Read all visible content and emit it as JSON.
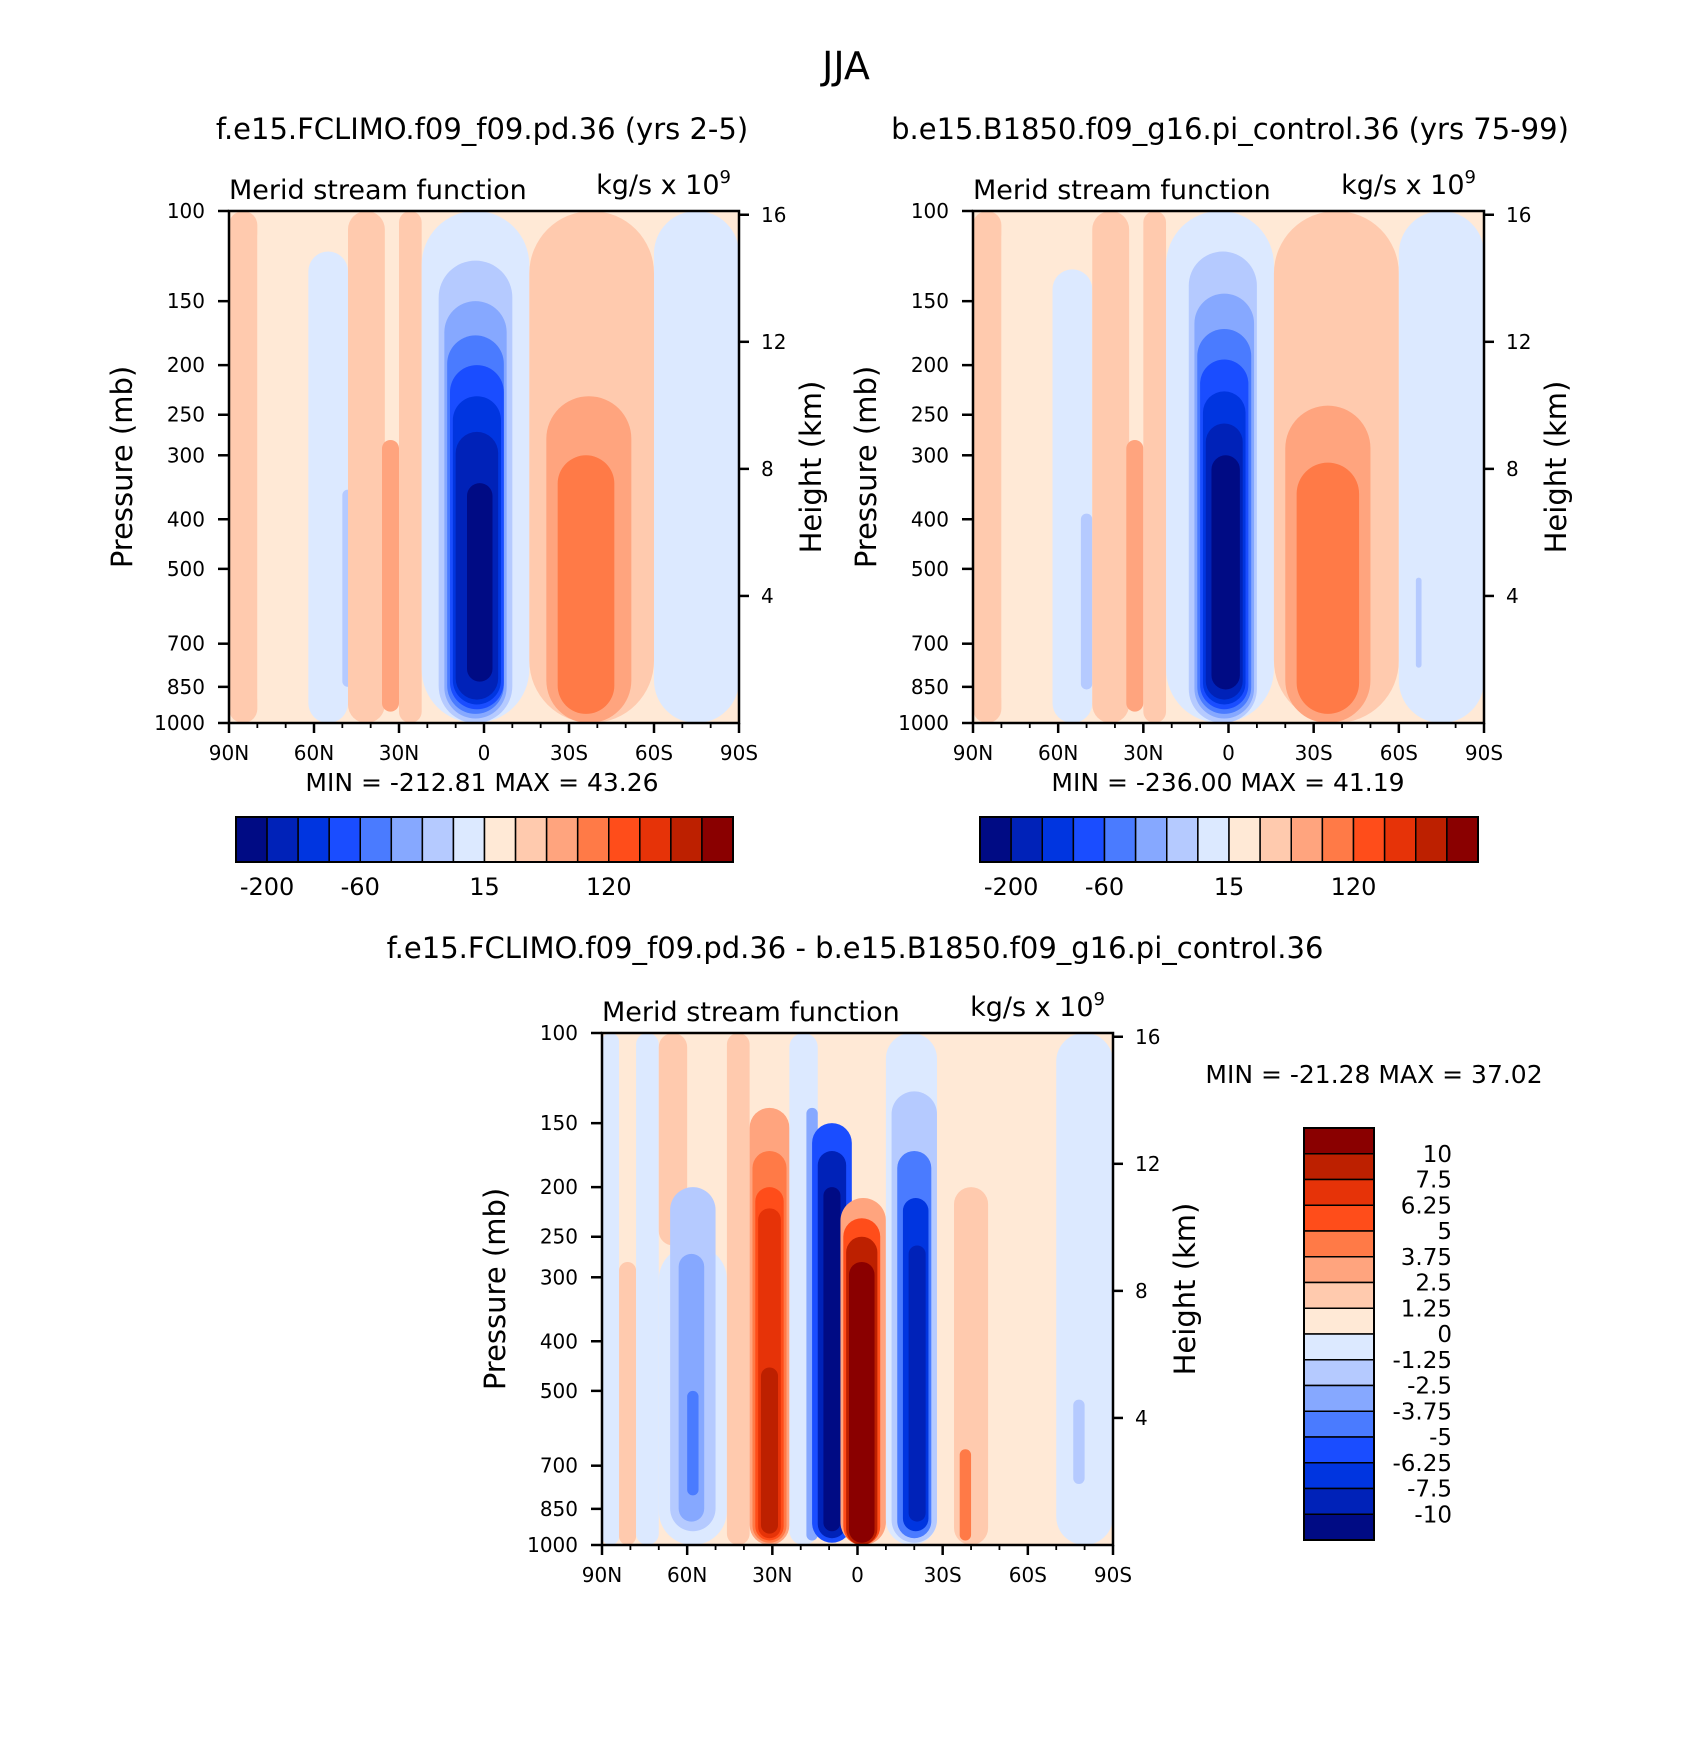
{
  "page_title": "JJA",
  "colors": {
    "negative": [
      "#000b84",
      "#0022b8",
      "#0035e0",
      "#1a4dff",
      "#4a7bff",
      "#86a8ff",
      "#b5caff",
      "#dce9ff"
    ],
    "positive": [
      "#ffe9d6",
      "#ffcaae",
      "#ffa47e",
      "#ff7a47",
      "#ff4d1a",
      "#e63308",
      "#bd2000",
      "#8a0000"
    ]
  },
  "chart_data": [
    {
      "id": "top-left",
      "type": "heatmap",
      "title": "f.e15.FCLIMO.f09_f09.pd.36 (yrs 2-5)",
      "left_string": "Merid stream function",
      "right_string": "kg/s x 10",
      "right_string_exp": "9",
      "ylabel": "Pressure (mb)",
      "ylabel_right": "Height (km)",
      "x_ticks": [
        "90N",
        "60N",
        "30N",
        "0",
        "30S",
        "60S",
        "90S"
      ],
      "y_ticks": [
        "100",
        "150",
        "200",
        "250",
        "300",
        "400",
        "500",
        "700",
        "850",
        "1000"
      ],
      "y_ticks_right": [
        "16",
        "12",
        "8",
        "4"
      ],
      "ylim": [
        1000,
        100
      ],
      "min_label": "MIN =",
      "min_value": "-212.81",
      "max_label": "MAX =",
      "max_value": "43.26",
      "colorbar_labels": [
        "-200",
        "-60",
        "15",
        "120"
      ],
      "cells": [
        {
          "lat_from": 90,
          "lat_to": 80,
          "p_top": 100,
          "p_bot": 1000,
          "level": 1
        },
        {
          "lat_from": 80,
          "lat_to": 62,
          "p_top": 100,
          "p_bot": 1000,
          "level": 0
        },
        {
          "lat_from": 62,
          "lat_to": 48,
          "p_top": 120,
          "p_bot": 1000,
          "level": -1
        },
        {
          "lat_from": 50,
          "lat_to": 46,
          "p_top": 350,
          "p_bot": 850,
          "level": -2
        },
        {
          "lat_from": 48,
          "lat_to": 35,
          "p_top": 100,
          "p_bot": 1000,
          "level": 1
        },
        {
          "lat_from": 36,
          "lat_to": 30,
          "p_top": 280,
          "p_bot": 950,
          "level": 2
        },
        {
          "lat_from": 30,
          "lat_to": 22,
          "p_top": 100,
          "p_bot": 1000,
          "level": 1
        },
        {
          "lat_from": 22,
          "lat_to": -16,
          "p_top": 100,
          "p_bot": 1000,
          "level": -1
        },
        {
          "lat_from": 16,
          "lat_to": -10,
          "p_top": 125,
          "p_bot": 1000,
          "level": -2
        },
        {
          "lat_from": 14,
          "lat_to": -8,
          "p_top": 150,
          "p_bot": 980,
          "level": -3
        },
        {
          "lat_from": 13,
          "lat_to": -7,
          "p_top": 175,
          "p_bot": 960,
          "level": -4
        },
        {
          "lat_from": 12,
          "lat_to": -7,
          "p_top": 200,
          "p_bot": 940,
          "level": -5
        },
        {
          "lat_from": 11,
          "lat_to": -6,
          "p_top": 230,
          "p_bot": 920,
          "level": -6
        },
        {
          "lat_from": 10,
          "lat_to": -5,
          "p_top": 270,
          "p_bot": 900,
          "level": -7
        },
        {
          "lat_from": 6,
          "lat_to": -3,
          "p_top": 340,
          "p_bot": 830,
          "level": -8
        },
        {
          "lat_from": -16,
          "lat_to": -60,
          "p_top": 100,
          "p_bot": 1000,
          "level": 1
        },
        {
          "lat_from": -22,
          "lat_to": -52,
          "p_top": 230,
          "p_bot": 1000,
          "level": 2
        },
        {
          "lat_from": -26,
          "lat_to": -46,
          "p_top": 300,
          "p_bot": 960,
          "level": 3
        },
        {
          "lat_from": -60,
          "lat_to": -90,
          "p_top": 100,
          "p_bot": 1000,
          "level": -1
        }
      ]
    },
    {
      "id": "top-right",
      "type": "heatmap",
      "title": "b.e15.B1850.f09_g16.pi_control.36 (yrs 75-99)",
      "left_string": "Merid stream function",
      "right_string": "kg/s x 10",
      "right_string_exp": "9",
      "ylabel": "Pressure (mb)",
      "ylabel_right": "Height (km)",
      "x_ticks": [
        "90N",
        "60N",
        "30N",
        "0",
        "30S",
        "60S",
        "90S"
      ],
      "y_ticks": [
        "100",
        "150",
        "200",
        "250",
        "300",
        "400",
        "500",
        "700",
        "850",
        "1000"
      ],
      "y_ticks_right": [
        "16",
        "12",
        "8",
        "4"
      ],
      "ylim": [
        1000,
        100
      ],
      "min_label": "MIN =",
      "min_value": "-236.00",
      "max_label": "MAX =",
      "max_value": "41.19",
      "colorbar_labels": [
        "-200",
        "-60",
        "15",
        "120"
      ],
      "cells": [
        {
          "lat_from": 90,
          "lat_to": 80,
          "p_top": 100,
          "p_bot": 1000,
          "level": 1
        },
        {
          "lat_from": 80,
          "lat_to": 62,
          "p_top": 100,
          "p_bot": 1000,
          "level": 0
        },
        {
          "lat_from": 62,
          "lat_to": 48,
          "p_top": 130,
          "p_bot": 1000,
          "level": -1
        },
        {
          "lat_from": 52,
          "lat_to": 48,
          "p_top": 390,
          "p_bot": 860,
          "level": -2
        },
        {
          "lat_from": 48,
          "lat_to": 35,
          "p_top": 100,
          "p_bot": 1000,
          "level": 1
        },
        {
          "lat_from": 36,
          "lat_to": 30,
          "p_top": 280,
          "p_bot": 950,
          "level": 2
        },
        {
          "lat_from": 30,
          "lat_to": 22,
          "p_top": 100,
          "p_bot": 1000,
          "level": 1
        },
        {
          "lat_from": 22,
          "lat_to": -16,
          "p_top": 100,
          "p_bot": 1000,
          "level": -1
        },
        {
          "lat_from": 14,
          "lat_to": -10,
          "p_top": 120,
          "p_bot": 1000,
          "level": -2
        },
        {
          "lat_from": 12,
          "lat_to": -9,
          "p_top": 145,
          "p_bot": 980,
          "level": -3
        },
        {
          "lat_from": 11,
          "lat_to": -8,
          "p_top": 170,
          "p_bot": 960,
          "level": -4
        },
        {
          "lat_from": 10,
          "lat_to": -7,
          "p_top": 195,
          "p_bot": 940,
          "level": -5
        },
        {
          "lat_from": 9,
          "lat_to": -6,
          "p_top": 225,
          "p_bot": 920,
          "level": -6
        },
        {
          "lat_from": 8,
          "lat_to": -5,
          "p_top": 260,
          "p_bot": 900,
          "level": -7
        },
        {
          "lat_from": 6,
          "lat_to": -4,
          "p_top": 300,
          "p_bot": 860,
          "level": -8
        },
        {
          "lat_from": -16,
          "lat_to": -60,
          "p_top": 100,
          "p_bot": 1000,
          "level": 1
        },
        {
          "lat_from": -20,
          "lat_to": -50,
          "p_top": 240,
          "p_bot": 1000,
          "level": 2
        },
        {
          "lat_from": -24,
          "lat_to": -46,
          "p_top": 310,
          "p_bot": 960,
          "level": 3
        },
        {
          "lat_from": -60,
          "lat_to": -90,
          "p_top": 100,
          "p_bot": 1000,
          "level": -1
        },
        {
          "lat_from": -66,
          "lat_to": -68,
          "p_top": 520,
          "p_bot": 780,
          "level": -2
        }
      ]
    },
    {
      "id": "bottom",
      "type": "heatmap",
      "title": "f.e15.FCLIMO.f09_f09.pd.36 - b.e15.B1850.f09_g16.pi_control.36",
      "left_string": "Merid stream function",
      "right_string": "kg/s x 10",
      "right_string_exp": "9",
      "ylabel": "Pressure (mb)",
      "ylabel_right": "Height (km)",
      "x_ticks": [
        "90N",
        "60N",
        "30N",
        "0",
        "30S",
        "60S",
        "90S"
      ],
      "y_ticks": [
        "100",
        "150",
        "200",
        "250",
        "300",
        "400",
        "500",
        "700",
        "850",
        "1000"
      ],
      "y_ticks_right": [
        "16",
        "12",
        "8",
        "4"
      ],
      "ylim": [
        1000,
        100
      ],
      "min_label": "MIN =",
      "min_value": "-21.28",
      "max_label": "MAX =",
      "max_value": "37.02",
      "colorbar_labels": [
        "10",
        "7.5",
        "6.25",
        "5",
        "3.75",
        "2.5",
        "1.25",
        "0",
        "-1.25",
        "-2.5",
        "-3.75",
        "-5",
        "-6.25",
        "-7.5",
        "-10"
      ],
      "cells": [
        {
          "lat_from": 90,
          "lat_to": 84,
          "p_top": 100,
          "p_bot": 1000,
          "level": -1
        },
        {
          "lat_from": 84,
          "lat_to": 78,
          "p_top": 280,
          "p_bot": 1000,
          "level": 1
        },
        {
          "lat_from": 78,
          "lat_to": 70,
          "p_top": 100,
          "p_bot": 1000,
          "level": -1
        },
        {
          "lat_from": 70,
          "lat_to": 60,
          "p_top": 100,
          "p_bot": 260,
          "level": 1
        },
        {
          "lat_from": 70,
          "lat_to": 46,
          "p_top": 260,
          "p_bot": 1000,
          "level": -1
        },
        {
          "lat_from": 66,
          "lat_to": 50,
          "p_top": 200,
          "p_bot": 940,
          "level": -2
        },
        {
          "lat_from": 63,
          "lat_to": 54,
          "p_top": 270,
          "p_bot": 900,
          "level": -3
        },
        {
          "lat_from": 60,
          "lat_to": 56,
          "p_top": 500,
          "p_bot": 800,
          "level": -4
        },
        {
          "lat_from": 46,
          "lat_to": 38,
          "p_top": 100,
          "p_bot": 1000,
          "level": 1
        },
        {
          "lat_from": 38,
          "lat_to": 24,
          "p_top": 140,
          "p_bot": 1000,
          "level": 2
        },
        {
          "lat_from": 37,
          "lat_to": 25,
          "p_top": 170,
          "p_bot": 990,
          "level": 3
        },
        {
          "lat_from": 36,
          "lat_to": 26,
          "p_top": 200,
          "p_bot": 980,
          "level": 4
        },
        {
          "lat_from": 35,
          "lat_to": 27,
          "p_top": 220,
          "p_bot": 970,
          "level": 5
        },
        {
          "lat_from": 34,
          "lat_to": 28,
          "p_top": 450,
          "p_bot": 950,
          "level": 6
        },
        {
          "lat_from": 24,
          "lat_to": 14,
          "p_top": 100,
          "p_bot": 1000,
          "level": -1
        },
        {
          "lat_from": 18,
          "lat_to": 14,
          "p_top": 140,
          "p_bot": 980,
          "level": -3
        },
        {
          "lat_from": 16,
          "lat_to": 2,
          "p_top": 150,
          "p_bot": 990,
          "level": -5
        },
        {
          "lat_from": 14,
          "lat_to": 4,
          "p_top": 170,
          "p_bot": 970,
          "level": -7
        },
        {
          "lat_from": 12,
          "lat_to": 6,
          "p_top": 200,
          "p_bot": 940,
          "level": -8
        },
        {
          "lat_from": 6,
          "lat_to": -10,
          "p_top": 210,
          "p_bot": 1000,
          "level": 2
        },
        {
          "lat_from": 5,
          "lat_to": -8,
          "p_top": 230,
          "p_bot": 1000,
          "level": 4
        },
        {
          "lat_from": 4,
          "lat_to": -7,
          "p_top": 250,
          "p_bot": 1000,
          "level": 6
        },
        {
          "lat_from": 3,
          "lat_to": -6,
          "p_top": 280,
          "p_bot": 990,
          "level": 7
        },
        {
          "lat_from": -10,
          "lat_to": -28,
          "p_top": 100,
          "p_bot": 1000,
          "level": -1
        },
        {
          "lat_from": -12,
          "lat_to": -28,
          "p_top": 130,
          "p_bot": 990,
          "level": -2
        },
        {
          "lat_from": -14,
          "lat_to": -26,
          "p_top": 170,
          "p_bot": 970,
          "level": -4
        },
        {
          "lat_from": -16,
          "lat_to": -25,
          "p_top": 210,
          "p_bot": 940,
          "level": -6
        },
        {
          "lat_from": -18,
          "lat_to": -24,
          "p_top": 260,
          "p_bot": 900,
          "level": -7
        },
        {
          "lat_from": -28,
          "lat_to": -70,
          "p_top": 100,
          "p_bot": 1000,
          "level": 0
        },
        {
          "lat_from": -34,
          "lat_to": -46,
          "p_top": 200,
          "p_bot": 1000,
          "level": 1
        },
        {
          "lat_from": -36,
          "lat_to": -40,
          "p_top": 650,
          "p_bot": 980,
          "level": 3
        },
        {
          "lat_from": -70,
          "lat_to": -90,
          "p_top": 100,
          "p_bot": 1000,
          "level": -1
        },
        {
          "lat_from": -76,
          "lat_to": -80,
          "p_top": 520,
          "p_bot": 760,
          "level": -2
        }
      ]
    }
  ]
}
